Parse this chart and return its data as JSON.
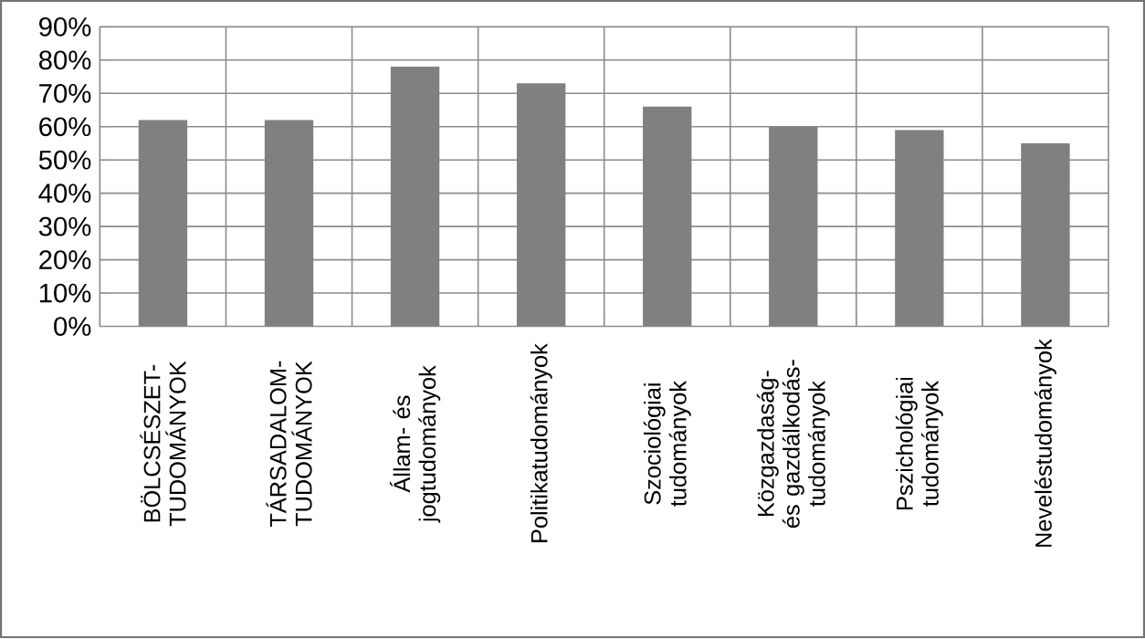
{
  "chart_data": {
    "type": "bar",
    "categories": [
      "BÖLCSÉSZET-TUDOMÁNYOK",
      "TÁRSADALOM-TUDOMÁNYOK",
      "Állam- és jogtudományok",
      "Politikatudományok",
      "Szociológiai tudományok",
      "Közgazdaság- és gazdálkodás-tudományok",
      "Pszichológiai tudományok",
      "Neveléstudományok"
    ],
    "values": [
      62,
      62,
      78,
      73,
      66,
      60,
      59,
      55
    ],
    "color": "#808080",
    "ylim": [
      0,
      90
    ],
    "yticks": [
      {
        "value": 0,
        "label": "0%"
      },
      {
        "value": 10,
        "label": "10%"
      },
      {
        "value": 20,
        "label": "20%"
      },
      {
        "value": 30,
        "label": "30%"
      },
      {
        "value": 40,
        "label": "40%"
      },
      {
        "value": 50,
        "label": "50%"
      },
      {
        "value": 60,
        "label": "60%"
      },
      {
        "value": 70,
        "label": "70%"
      },
      {
        "value": 80,
        "label": "80%"
      },
      {
        "value": 90,
        "label": "90%"
      }
    ],
    "grid": true
  }
}
